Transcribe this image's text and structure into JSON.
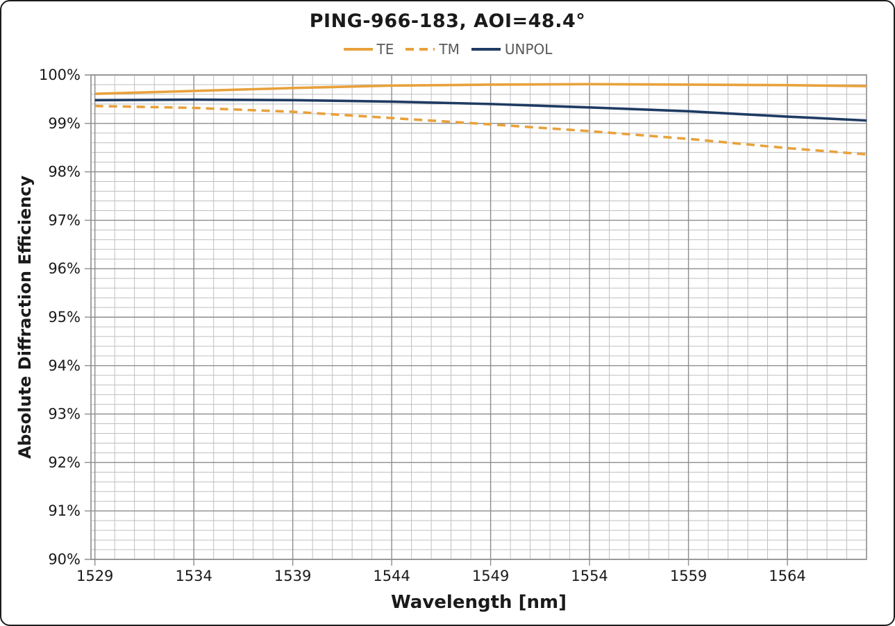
{
  "title": "PING-966-183, AOI=48.4°",
  "colors": {
    "orange": "#E8A13C",
    "navy": "#1F3B63",
    "grid_major": "#8c8c8c",
    "grid_minor": "#bfbfbf",
    "legend_text": "#595959",
    "text": "#1a1a1a"
  },
  "chart_data": {
    "type": "line",
    "title": "PING-966-183, AOI=48.4°",
    "xlabel": "Wavelength [nm]",
    "ylabel": "Absolute Diffraction Efficiency",
    "xlim": [
      1528.8,
      1568.0
    ],
    "ylim": [
      90,
      100
    ],
    "x_major_ticks": [
      1529,
      1534,
      1539,
      1544,
      1549,
      1554,
      1559,
      1564
    ],
    "x_minor_step": 1,
    "y_major_step": 1,
    "y_minor_step": 0.2,
    "y_tick_suffix": "%",
    "grid": "both",
    "legend_position": "top",
    "x": [
      1529,
      1534,
      1539,
      1544,
      1549,
      1554,
      1559,
      1564,
      1568
    ],
    "series": [
      {
        "name": "TE",
        "color": "#E8A13C",
        "style": "solid",
        "values": [
          99.61,
          99.67,
          99.73,
          99.78,
          99.8,
          99.81,
          99.8,
          99.79,
          99.77
        ]
      },
      {
        "name": "TM",
        "color": "#E8A13C",
        "style": "dashed",
        "values": [
          99.36,
          99.32,
          99.24,
          99.11,
          98.98,
          98.84,
          98.68,
          98.49,
          98.36
        ]
      },
      {
        "name": "UNPOL",
        "color": "#1F3B63",
        "style": "solid",
        "values": [
          99.48,
          99.49,
          99.48,
          99.45,
          99.4,
          99.33,
          99.25,
          99.14,
          99.06
        ]
      }
    ]
  }
}
